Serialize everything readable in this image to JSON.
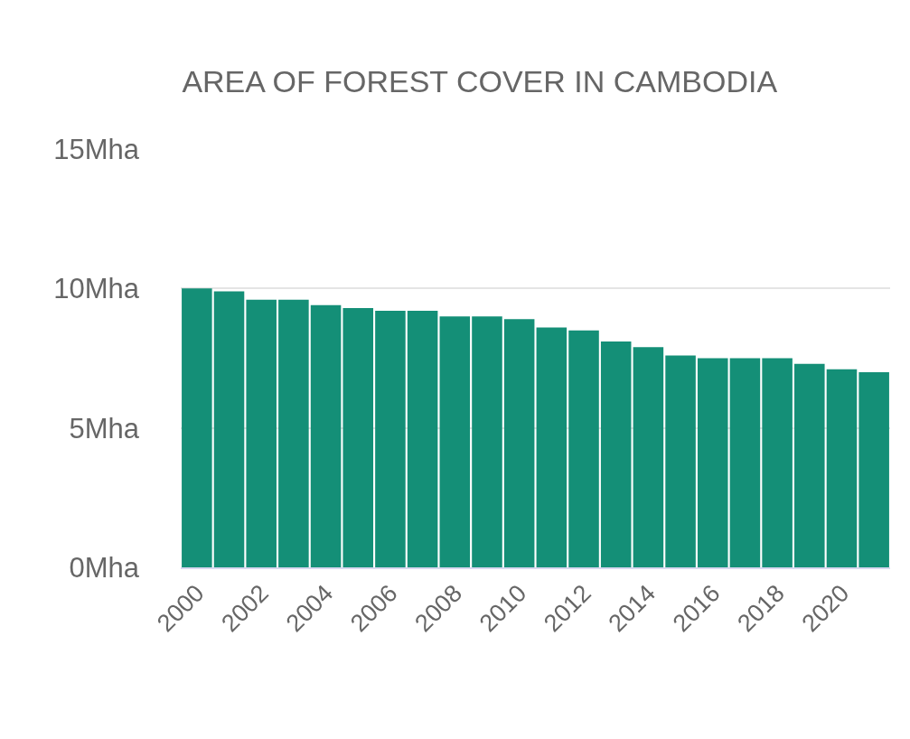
{
  "chart_data": {
    "type": "bar",
    "title": "AREA OF FOREST COVER IN CAMBODIA",
    "x": [
      2000,
      2001,
      2002,
      2003,
      2004,
      2005,
      2006,
      2007,
      2008,
      2009,
      2010,
      2011,
      2012,
      2013,
      2014,
      2015,
      2016,
      2017,
      2018,
      2019,
      2020,
      2021
    ],
    "values": [
      10.0,
      9.9,
      9.6,
      9.6,
      9.4,
      9.3,
      9.2,
      9.2,
      9.0,
      9.0,
      8.9,
      8.6,
      8.5,
      8.1,
      7.9,
      7.6,
      7.5,
      7.5,
      7.5,
      7.3,
      7.1,
      7.0
    ],
    "color": "#148f77",
    "xlim": [
      1999.5,
      2021.5
    ],
    "xticks": [
      2000,
      2002,
      2004,
      2006,
      2008,
      2010,
      2012,
      2014,
      2016,
      2018,
      2020
    ],
    "ylim": [
      0,
      15
    ],
    "yticks": [
      {
        "value": 0,
        "label": "0Mha"
      },
      {
        "value": 5,
        "label": "5Mha"
      },
      {
        "value": 10,
        "label": "10Mha"
      },
      {
        "value": 15,
        "label": "15Mha"
      }
    ],
    "grid": "y",
    "legend": false
  }
}
